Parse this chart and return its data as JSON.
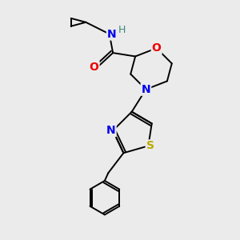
{
  "background_color": "#ebebeb",
  "atom_colors": {
    "C": "#000000",
    "N": "#0000ee",
    "O": "#ee0000",
    "S": "#bbaa00",
    "H": "#3a8a7a"
  },
  "bond_color": "#000000",
  "figsize": [
    3.0,
    3.0
  ],
  "dpi": 100,
  "lw": 1.4
}
